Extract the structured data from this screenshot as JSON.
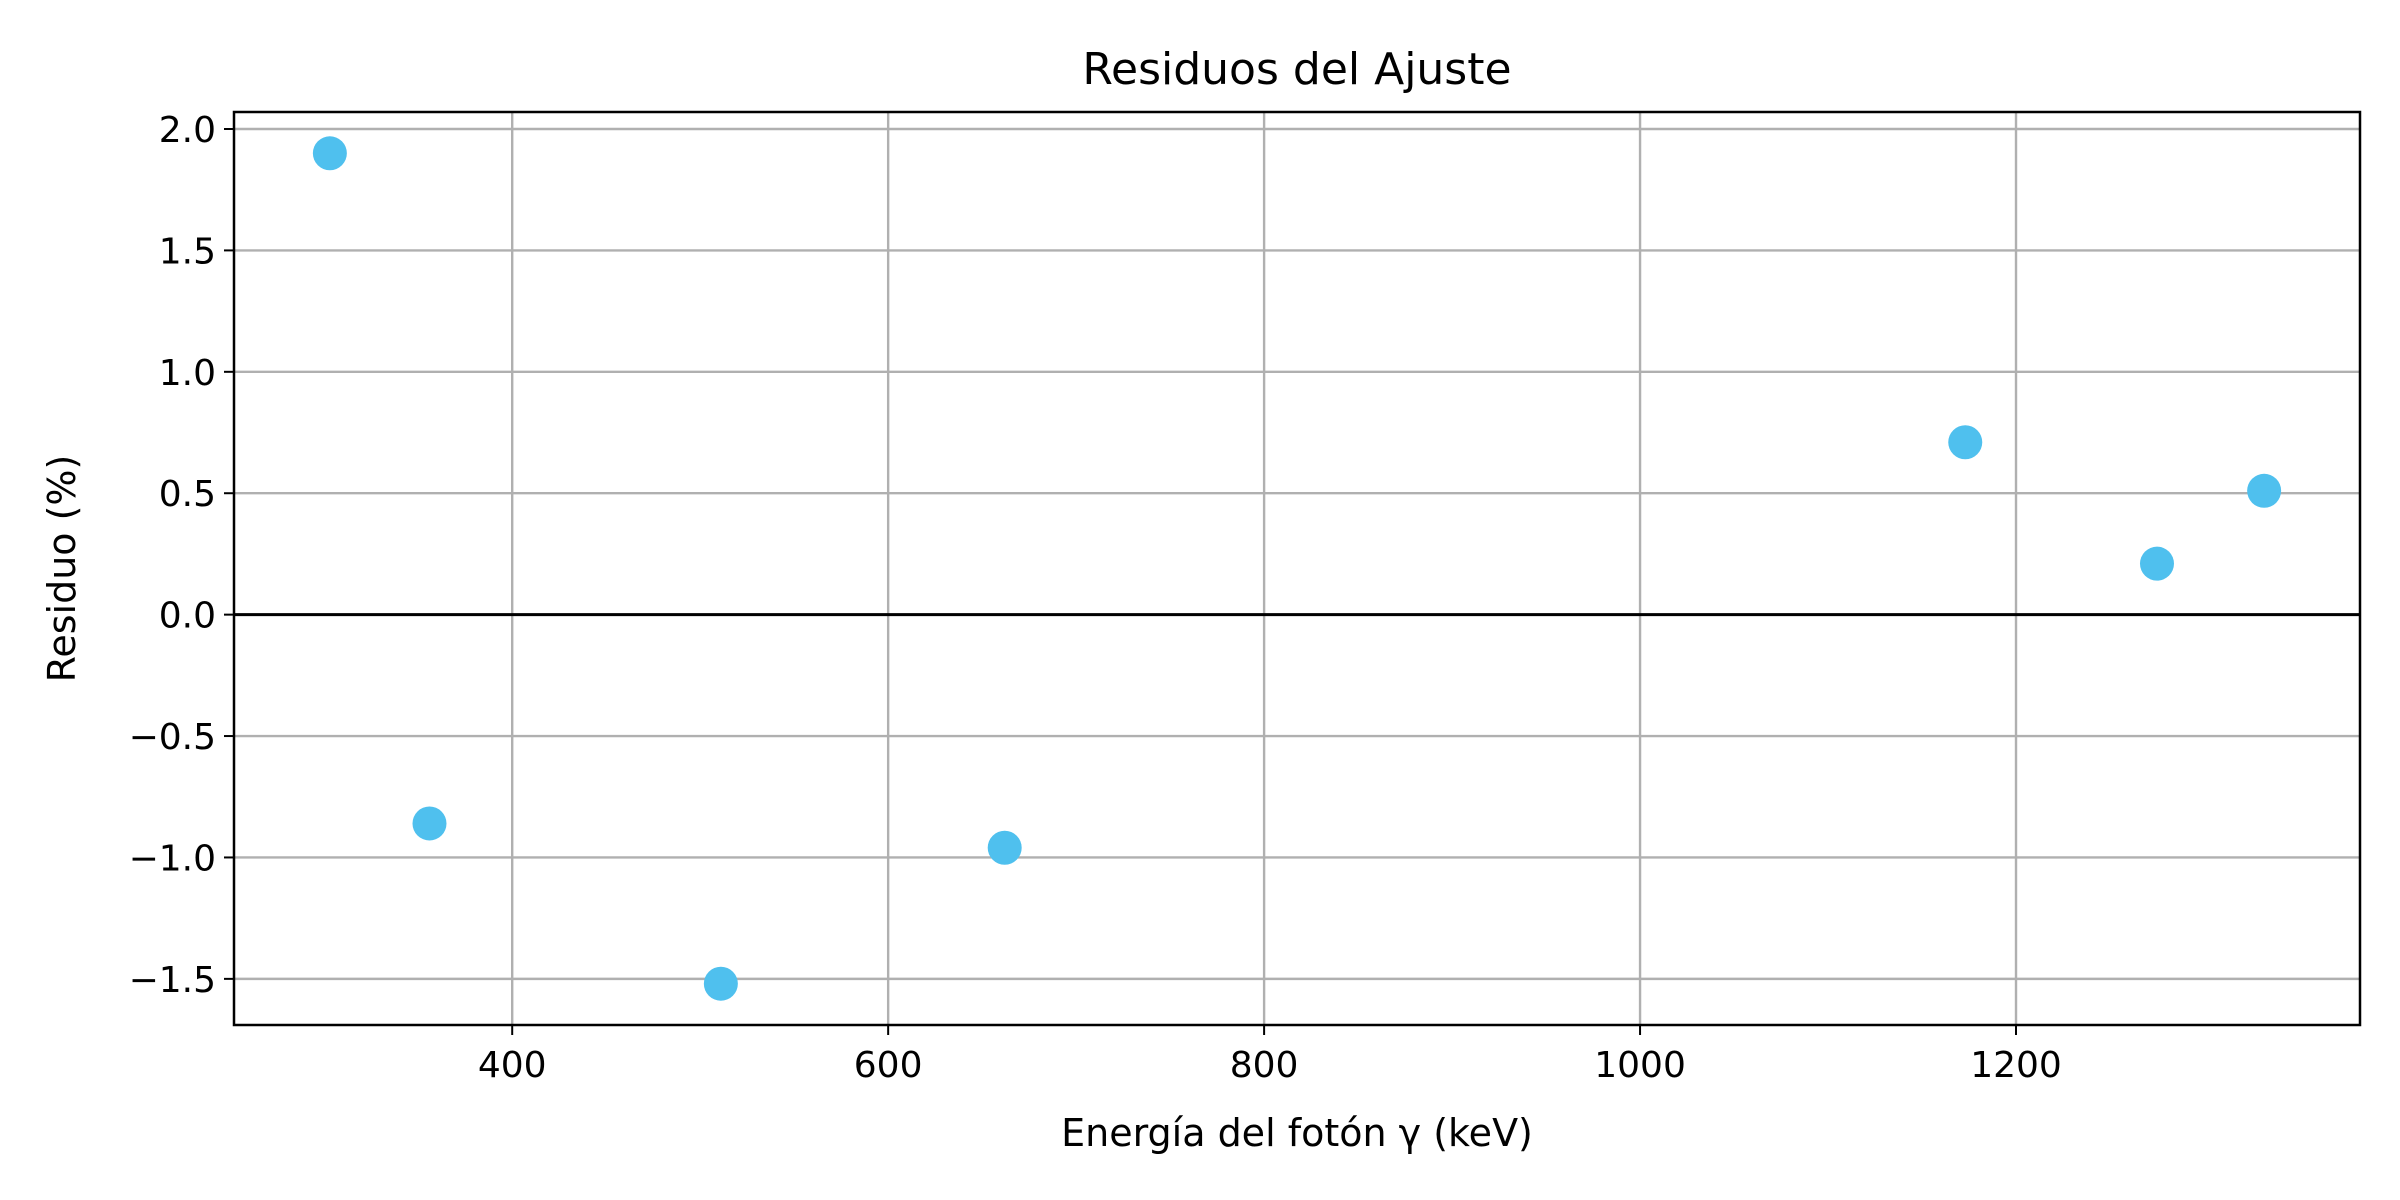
{
  "chart_data": {
    "type": "scatter",
    "title": "Residuos del Ajuste",
    "xlabel": "Energía del fotón γ (keV)",
    "ylabel": "Residuo (%)",
    "xlim": [
      252,
      1383
    ],
    "ylim": [
      -1.69,
      2.07
    ],
    "xticks": [
      {
        "value": 400,
        "label": "400"
      },
      {
        "value": 600,
        "label": "600"
      },
      {
        "value": 800,
        "label": "800"
      },
      {
        "value": 1000,
        "label": "1000"
      },
      {
        "value": 1200,
        "label": "1200"
      }
    ],
    "yticks": [
      {
        "value": -1.5,
        "label": "−1.5"
      },
      {
        "value": -1.0,
        "label": "−1.0"
      },
      {
        "value": -0.5,
        "label": "−0.5"
      },
      {
        "value": 0.0,
        "label": "0.0"
      },
      {
        "value": 0.5,
        "label": "0.5"
      },
      {
        "value": 1.0,
        "label": "1.0"
      },
      {
        "value": 1.5,
        "label": "1.5"
      },
      {
        "value": 2.0,
        "label": "2.0"
      }
    ],
    "grid": true,
    "reference_line": {
      "y": 0.0,
      "color": "#000000"
    },
    "series": [
      {
        "color": "#4fc0ee",
        "points": [
          {
            "x": 303,
            "y": 1.9
          },
          {
            "x": 356,
            "y": -0.86
          },
          {
            "x": 511,
            "y": -1.52
          },
          {
            "x": 662,
            "y": -0.96
          },
          {
            "x": 1173,
            "y": 0.71
          },
          {
            "x": 1275,
            "y": 0.21
          },
          {
            "x": 1332,
            "y": 0.51
          }
        ]
      }
    ]
  }
}
